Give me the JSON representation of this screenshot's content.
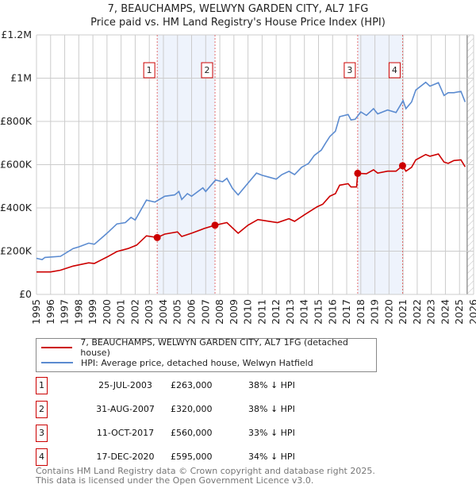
{
  "chart_data": {
    "type": "line",
    "title": "7, BEAUCHAMPS, WELWYN GARDEN CITY, AL7 1FG",
    "subtitle": "Price paid vs. HM Land Registry's House Price Index (HPI)",
    "xlim": [
      1995,
      2026
    ],
    "ylim": [
      0,
      1200000
    ],
    "x_ticks": [
      "1995",
      "1996",
      "1997",
      "1998",
      "1999",
      "2000",
      "2001",
      "2002",
      "2003",
      "2004",
      "2005",
      "2006",
      "2007",
      "2008",
      "2009",
      "2010",
      "2011",
      "2012",
      "2013",
      "2014",
      "2015",
      "2016",
      "2017",
      "2018",
      "2019",
      "2020",
      "2021",
      "2022",
      "2023",
      "2024",
      "2025",
      "2026"
    ],
    "y_ticks": [
      {
        "v": 0,
        "label": "£0"
      },
      {
        "v": 200000,
        "label": "£200K"
      },
      {
        "v": 400000,
        "label": "£400K"
      },
      {
        "v": 600000,
        "label": "£600K"
      },
      {
        "v": 800000,
        "label": "£800K"
      },
      {
        "v": 1000000,
        "label": "£1M"
      },
      {
        "v": 1200000,
        "label": "£1.2M"
      }
    ],
    "grid": true,
    "forecast_from": 2025.54,
    "colors": {
      "property": "#cc0000",
      "hpi": "#5b8bd0",
      "shade": "#eef3fc",
      "vline": "#e05050"
    },
    "series": [
      {
        "name": "7, BEAUCHAMPS, WELWYN GARDEN CITY, AL7 1FG (detached house)",
        "key": "property",
        "points": [
          [
            1995,
            104
          ],
          [
            1996,
            104
          ],
          [
            1996.7,
            112
          ],
          [
            1997.6,
            131
          ],
          [
            1998.7,
            146
          ],
          [
            1999.1,
            143
          ],
          [
            2000,
            173
          ],
          [
            2000.7,
            198
          ],
          [
            2001.5,
            212
          ],
          [
            2002.1,
            228
          ],
          [
            2002.8,
            271
          ],
          [
            2003.56,
            263
          ],
          [
            2004.1,
            279
          ],
          [
            2005,
            289
          ],
          [
            2005.3,
            268
          ],
          [
            2006,
            283
          ],
          [
            2006.9,
            305
          ],
          [
            2007.66,
            320
          ],
          [
            2008.5,
            332
          ],
          [
            2009.3,
            283
          ],
          [
            2010,
            320
          ],
          [
            2010.7,
            346
          ],
          [
            2011.5,
            338
          ],
          [
            2012.1,
            332
          ],
          [
            2012.9,
            350
          ],
          [
            2013.3,
            338
          ],
          [
            2014,
            368
          ],
          [
            2014.9,
            405
          ],
          [
            2015.3,
            417
          ],
          [
            2015.8,
            454
          ],
          [
            2016.2,
            466
          ],
          [
            2016.5,
            505
          ],
          [
            2017.1,
            512
          ],
          [
            2017.3,
            497
          ],
          [
            2017.7,
            497
          ],
          [
            2017.78,
            560
          ],
          [
            2018.4,
            558
          ],
          [
            2018.9,
            576
          ],
          [
            2019.2,
            561
          ],
          [
            2019.9,
            570
          ],
          [
            2020.5,
            570
          ],
          [
            2020.96,
            595
          ],
          [
            2021.2,
            570
          ],
          [
            2021.6,
            588
          ],
          [
            2021.9,
            622
          ],
          [
            2022.6,
            647
          ],
          [
            2022.9,
            639
          ],
          [
            2023.5,
            649
          ],
          [
            2023.9,
            612
          ],
          [
            2024.2,
            606
          ],
          [
            2024.6,
            619
          ],
          [
            2025.1,
            622
          ],
          [
            2025.4,
            590
          ]
        ]
      },
      {
        "name": "HPI: Average price, detached house, Welwyn Hatfield",
        "key": "hpi",
        "points": [
          [
            1995,
            167
          ],
          [
            1995.4,
            161
          ],
          [
            1995.6,
            171
          ],
          [
            1996.7,
            176
          ],
          [
            1997.6,
            212
          ],
          [
            1998,
            220
          ],
          [
            1998.7,
            237
          ],
          [
            1999.1,
            232
          ],
          [
            2000,
            283
          ],
          [
            2000.7,
            326
          ],
          [
            2001.3,
            332
          ],
          [
            2001.7,
            356
          ],
          [
            2002,
            344
          ],
          [
            2002.8,
            436
          ],
          [
            2003.4,
            427
          ],
          [
            2004.1,
            454
          ],
          [
            2004.8,
            460
          ],
          [
            2005.1,
            476
          ],
          [
            2005.3,
            439
          ],
          [
            2005.7,
            466
          ],
          [
            2006,
            454
          ],
          [
            2006.8,
            493
          ],
          [
            2007,
            476
          ],
          [
            2007.7,
            529
          ],
          [
            2008.2,
            521
          ],
          [
            2008.5,
            537
          ],
          [
            2008.9,
            490
          ],
          [
            2009.3,
            460
          ],
          [
            2010,
            515
          ],
          [
            2010.6,
            561
          ],
          [
            2011,
            551
          ],
          [
            2011.5,
            542
          ],
          [
            2012,
            533
          ],
          [
            2012.4,
            554
          ],
          [
            2012.9,
            569
          ],
          [
            2013.3,
            554
          ],
          [
            2013.8,
            588
          ],
          [
            2014.3,
            606
          ],
          [
            2014.7,
            643
          ],
          [
            2015.2,
            667
          ],
          [
            2015.5,
            700
          ],
          [
            2015.8,
            730
          ],
          [
            2016.2,
            755
          ],
          [
            2016.5,
            822
          ],
          [
            2017.1,
            832
          ],
          [
            2017.3,
            807
          ],
          [
            2017.6,
            810
          ],
          [
            2018,
            844
          ],
          [
            2018.4,
            828
          ],
          [
            2018.9,
            859
          ],
          [
            2019.2,
            835
          ],
          [
            2019.9,
            853
          ],
          [
            2020.5,
            841
          ],
          [
            2021,
            896
          ],
          [
            2021.2,
            859
          ],
          [
            2021.6,
            890
          ],
          [
            2021.9,
            945
          ],
          [
            2022.6,
            981
          ],
          [
            2022.9,
            963
          ],
          [
            2023.5,
            979
          ],
          [
            2023.9,
            920
          ],
          [
            2024.2,
            933
          ],
          [
            2024.6,
            933
          ],
          [
            2025.1,
            939
          ],
          [
            2025.4,
            890
          ]
        ]
      }
    ],
    "sales": [
      {
        "id": "1",
        "x": 2003.56,
        "price": 263000,
        "date": "25-JUL-2003",
        "price_label": "£263,000",
        "hpi_label": "38% ↓ HPI"
      },
      {
        "id": "2",
        "x": 2007.66,
        "price": 320000,
        "date": "31-AUG-2007",
        "price_label": "£320,000",
        "hpi_label": "38% ↓ HPI"
      },
      {
        "id": "3",
        "x": 2017.78,
        "price": 560000,
        "date": "11-OCT-2017",
        "price_label": "£560,000",
        "hpi_label": "33% ↓ HPI"
      },
      {
        "id": "4",
        "x": 2020.96,
        "price": 595000,
        "date": "17-DEC-2020",
        "price_label": "£595,000",
        "hpi_label": "34% ↓ HPI"
      }
    ],
    "shaded_ranges": [
      [
        "1",
        "2"
      ],
      [
        "3",
        "4"
      ]
    ]
  },
  "footer": {
    "line1": "Contains HM Land Registry data © Crown copyright and database right 2025.",
    "line2": "This data is licensed under the Open Government Licence v3.0."
  }
}
